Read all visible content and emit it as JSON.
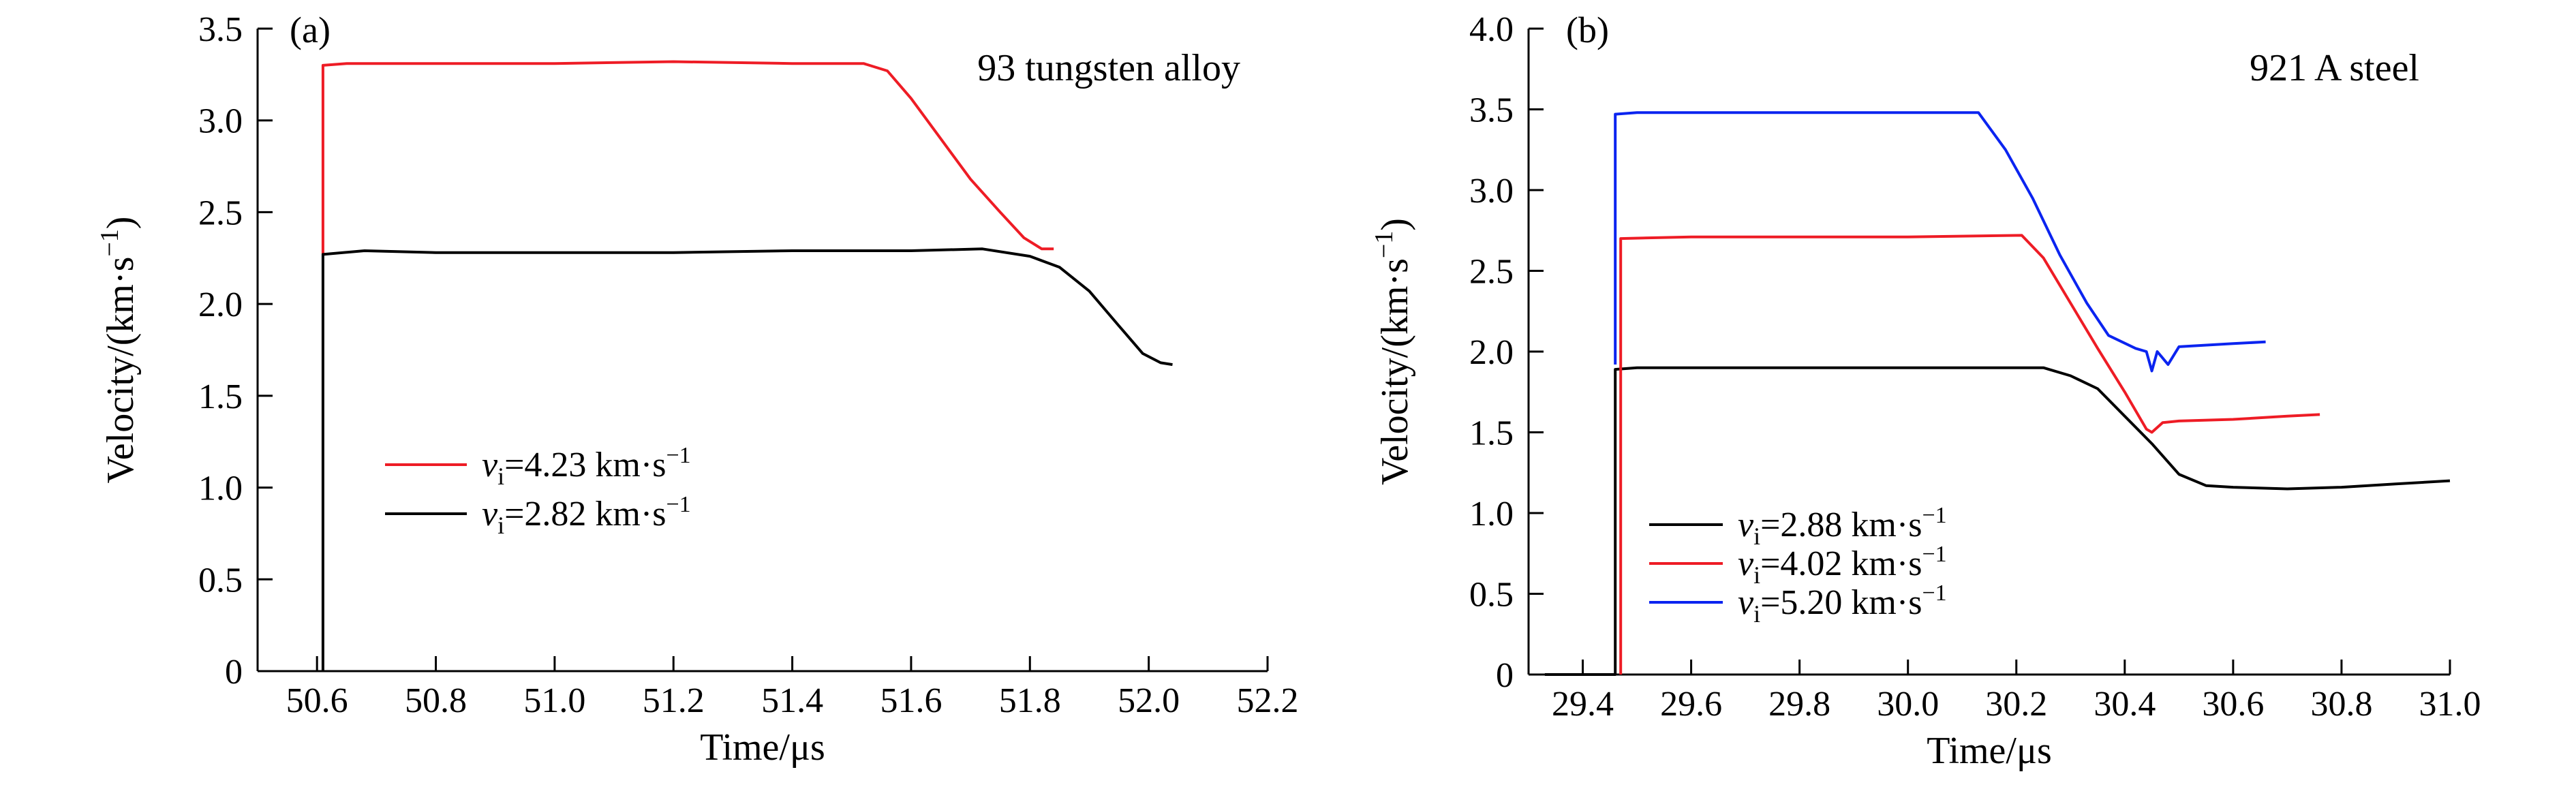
{
  "chart_data": [
    {
      "type": "line",
      "panel_label": "(a)",
      "annotation": "93 tungsten alloy",
      "xlabel": "Time/μs",
      "ylabel": "Velocity/(km·s",
      "ylabel_sup": "−1",
      "ylabel_end": ")",
      "xlim": [
        50.5,
        52.2
      ],
      "ylim": [
        0,
        3.5
      ],
      "xticks": [
        50.6,
        50.8,
        51.0,
        51.2,
        51.4,
        51.6,
        51.8,
        52.0,
        52.2
      ],
      "yticks": [
        0,
        0.5,
        1.0,
        1.5,
        2.0,
        2.5,
        3.0,
        3.5
      ],
      "xtick_labels": [
        "50.6",
        "50.8",
        "51.0",
        "51.2",
        "51.4",
        "51.6",
        "51.8",
        "52.0",
        "52.2"
      ],
      "ytick_labels": [
        "0",
        "0.5",
        "1.0",
        "1.5",
        "2.0",
        "2.5",
        "3.0",
        "3.5"
      ],
      "legend": "left-middle",
      "series": [
        {
          "name": "vi=4.23 km·s−1",
          "legend_var": "v",
          "legend_sub": "i",
          "legend_value": "=4.23 km·s",
          "legend_sup": "−1",
          "color": "#ee1c25",
          "points": [
            [
              50.61,
              2.27
            ],
            [
              50.61,
              3.3
            ],
            [
              50.65,
              3.31
            ],
            [
              50.8,
              3.31
            ],
            [
              51.0,
              3.31
            ],
            [
              51.2,
              3.32
            ],
            [
              51.4,
              3.31
            ],
            [
              51.52,
              3.31
            ],
            [
              51.56,
              3.27
            ],
            [
              51.6,
              3.12
            ],
            [
              51.65,
              2.9
            ],
            [
              51.7,
              2.68
            ],
            [
              51.75,
              2.5
            ],
            [
              51.79,
              2.36
            ],
            [
              51.82,
              2.3
            ],
            [
              51.84,
              2.3
            ]
          ]
        },
        {
          "name": "vi=2.82 km·s−1",
          "legend_var": "v",
          "legend_sub": "i",
          "legend_value": "=2.82 km·s",
          "legend_sup": "−1",
          "color": "#000000",
          "points": [
            [
              50.61,
              0.0
            ],
            [
              50.61,
              2.27
            ],
            [
              50.68,
              2.29
            ],
            [
              50.8,
              2.28
            ],
            [
              51.0,
              2.28
            ],
            [
              51.2,
              2.28
            ],
            [
              51.4,
              2.29
            ],
            [
              51.6,
              2.29
            ],
            [
              51.72,
              2.3
            ],
            [
              51.8,
              2.26
            ],
            [
              51.85,
              2.2
            ],
            [
              51.9,
              2.07
            ],
            [
              51.95,
              1.88
            ],
            [
              51.99,
              1.73
            ],
            [
              52.02,
              1.68
            ],
            [
              52.04,
              1.67
            ]
          ]
        }
      ]
    },
    {
      "type": "line",
      "panel_label": "(b)",
      "annotation": "921 A steel",
      "xlabel": "Time/μs",
      "ylabel": "Velocity/(km·s",
      "ylabel_sup": "−1",
      "ylabel_end": ")",
      "xlim": [
        29.3,
        31.0
      ],
      "ylim": [
        0,
        4.0
      ],
      "xticks": [
        29.4,
        29.6,
        29.8,
        30.0,
        30.2,
        30.4,
        30.6,
        30.8,
        31.0
      ],
      "yticks": [
        0,
        0.5,
        1.0,
        1.5,
        2.0,
        2.5,
        3.0,
        3.5,
        4.0
      ],
      "xtick_labels": [
        "29.4",
        "29.6",
        "29.8",
        "30.0",
        "30.2",
        "30.4",
        "30.6",
        "30.8",
        "31.0"
      ],
      "ytick_labels": [
        "0",
        "0.5",
        "1.0",
        "1.5",
        "2.0",
        "2.5",
        "3.0",
        "3.5",
        "4.0"
      ],
      "legend": "bottom-left",
      "series": [
        {
          "name": "vi=2.88 km·s−1",
          "legend_var": "v",
          "legend_sub": "i",
          "legend_value": "=2.88 km·s",
          "legend_sup": "−1",
          "color": "#000000",
          "points": [
            [
              29.33,
              0.0
            ],
            [
              29.46,
              0.0
            ],
            [
              29.46,
              1.89
            ],
            [
              29.5,
              1.9
            ],
            [
              29.7,
              1.9
            ],
            [
              29.9,
              1.9
            ],
            [
              30.1,
              1.9
            ],
            [
              30.25,
              1.9
            ],
            [
              30.3,
              1.85
            ],
            [
              30.35,
              1.77
            ],
            [
              30.4,
              1.6
            ],
            [
              30.45,
              1.43
            ],
            [
              30.5,
              1.24
            ],
            [
              30.55,
              1.17
            ],
            [
              30.6,
              1.16
            ],
            [
              30.7,
              1.15
            ],
            [
              30.8,
              1.16
            ],
            [
              30.9,
              1.18
            ],
            [
              31.0,
              1.2
            ]
          ]
        },
        {
          "name": "vi=4.02 km·s−1",
          "legend_var": "v",
          "legend_sub": "i",
          "legend_value": "=4.02 km·s",
          "legend_sup": "−1",
          "color": "#ee1c25",
          "points": [
            [
              29.47,
              0.0
            ],
            [
              29.47,
              2.7
            ],
            [
              29.6,
              2.71
            ],
            [
              29.8,
              2.71
            ],
            [
              30.0,
              2.71
            ],
            [
              30.21,
              2.72
            ],
            [
              30.25,
              2.58
            ],
            [
              30.3,
              2.3
            ],
            [
              30.35,
              2.02
            ],
            [
              30.4,
              1.75
            ],
            [
              30.44,
              1.52
            ],
            [
              30.45,
              1.5
            ],
            [
              30.47,
              1.56
            ],
            [
              30.5,
              1.57
            ],
            [
              30.6,
              1.58
            ],
            [
              30.7,
              1.6
            ],
            [
              30.76,
              1.61
            ]
          ]
        },
        {
          "name": "vi=5.20 km·s−1",
          "legend_var": "v",
          "legend_sub": "i",
          "legend_value": "=5.20 km·s",
          "legend_sup": "−1",
          "color": "#0b24f0",
          "points": [
            [
              29.46,
              1.92
            ],
            [
              29.46,
              3.47
            ],
            [
              29.5,
              3.48
            ],
            [
              29.7,
              3.48
            ],
            [
              29.9,
              3.48
            ],
            [
              30.05,
              3.48
            ],
            [
              30.13,
              3.48
            ],
            [
              30.18,
              3.25
            ],
            [
              30.23,
              2.95
            ],
            [
              30.28,
              2.6
            ],
            [
              30.33,
              2.3
            ],
            [
              30.37,
              2.1
            ],
            [
              30.42,
              2.02
            ],
            [
              30.44,
              2.0
            ],
            [
              30.45,
              1.88
            ],
            [
              30.46,
              2.0
            ],
            [
              30.48,
              1.92
            ],
            [
              30.5,
              2.03
            ],
            [
              30.6,
              2.05
            ],
            [
              30.66,
              2.06
            ]
          ]
        }
      ]
    }
  ]
}
